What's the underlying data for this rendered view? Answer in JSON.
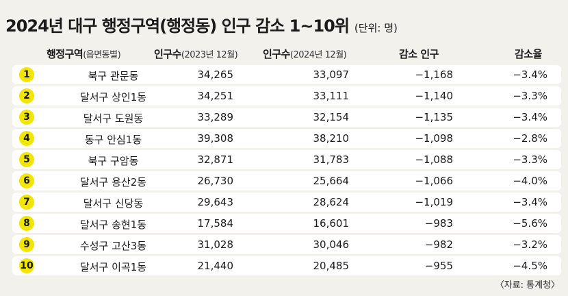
{
  "title": {
    "main": "2024년 대구 행정구역(행정동) 인구 감소 1~10위",
    "unit": "(단위: 명)"
  },
  "header": {
    "district_bold": "행정구역",
    "district_sub": "(읍면동별)",
    "pop2023_bold": "인구수",
    "pop2023_sub": "(2023년 12월)",
    "pop2024_bold": "인구수",
    "pop2024_sub": "(2024년 12월)",
    "decrease": "감소 인구",
    "rate": "감소율"
  },
  "accent_color": "#f2e600",
  "rows": [
    {
      "rank": "1",
      "name": "북구 관문동",
      "pop2023": "34,265",
      "pop2024": "33,097",
      "decrease": "−1,168",
      "rate": "−3.4%"
    },
    {
      "rank": "2",
      "name": "달서구 상인1동",
      "pop2023": "34,251",
      "pop2024": "33,111",
      "decrease": "−1,140",
      "rate": "−3.3%"
    },
    {
      "rank": "3",
      "name": "달서구 도원동",
      "pop2023": "33,289",
      "pop2024": "32,154",
      "decrease": "−1,135",
      "rate": "−3.4%"
    },
    {
      "rank": "4",
      "name": "동구 안심1동",
      "pop2023": "39,308",
      "pop2024": "38,210",
      "decrease": "−1,098",
      "rate": "−2.8%"
    },
    {
      "rank": "5",
      "name": "북구 구암동",
      "pop2023": "32,871",
      "pop2024": "31,783",
      "decrease": "−1,088",
      "rate": "−3.3%"
    },
    {
      "rank": "6",
      "name": "달서구 용산2동",
      "pop2023": "26,730",
      "pop2024": "25,664",
      "decrease": "−1,066",
      "rate": "−4.0%"
    },
    {
      "rank": "7",
      "name": "달서구 신당동",
      "pop2023": "29,643",
      "pop2024": "28,624",
      "decrease": "−1,019",
      "rate": "−3.4%"
    },
    {
      "rank": "8",
      "name": "달서구 송현1동",
      "pop2023": "17,584",
      "pop2024": "16,601",
      "decrease": "−983",
      "rate": "−5.6%"
    },
    {
      "rank": "9",
      "name": "수성구 고산3동",
      "pop2023": "31,028",
      "pop2024": "30,046",
      "decrease": "−982",
      "rate": "−3.2%"
    },
    {
      "rank": "10",
      "name": "달서구 이곡1동",
      "pop2023": "21,440",
      "pop2024": "20,485",
      "decrease": "−955",
      "rate": "−4.5%"
    }
  ],
  "source": "〈자료: 통계청〉"
}
